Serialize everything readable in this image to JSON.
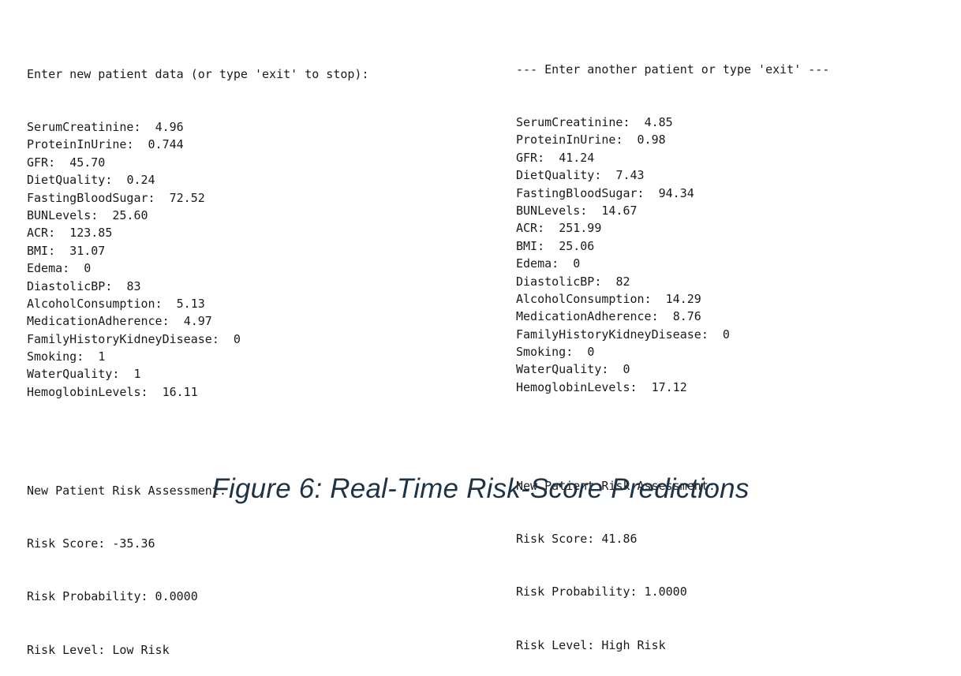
{
  "left": {
    "header": "Enter new patient data (or type 'exit' to stop):",
    "fields": [
      {
        "key": "SerumCreatinine",
        "value": "4.96"
      },
      {
        "key": "ProteinInUrine",
        "value": "0.744"
      },
      {
        "key": "GFR",
        "value": "45.70"
      },
      {
        "key": "DietQuality",
        "value": "0.24"
      },
      {
        "key": "FastingBloodSugar",
        "value": "72.52"
      },
      {
        "key": "BUNLevels",
        "value": "25.60"
      },
      {
        "key": "ACR",
        "value": "123.85"
      },
      {
        "key": "BMI",
        "value": "31.07"
      },
      {
        "key": "Edema",
        "value": "0"
      },
      {
        "key": "DiastolicBP",
        "value": "83"
      },
      {
        "key": "AlcoholConsumption",
        "value": "5.13"
      },
      {
        "key": "MedicationAdherence",
        "value": "4.97"
      },
      {
        "key": "FamilyHistoryKidneyDisease",
        "value": "0"
      },
      {
        "key": "Smoking",
        "value": "1"
      },
      {
        "key": "WaterQuality",
        "value": "1"
      },
      {
        "key": "HemoglobinLevels",
        "value": "16.11"
      }
    ],
    "assessment": {
      "title": "New Patient Risk Assessment:",
      "score": "Risk Score: -35.36",
      "probability": "Risk Probability: 0.0000",
      "level": "Risk Level: Low Risk"
    }
  },
  "right": {
    "header": "--- Enter another patient or type 'exit' ---",
    "fields": [
      {
        "key": "SerumCreatinine",
        "value": "4.85"
      },
      {
        "key": "ProteinInUrine",
        "value": "0.98"
      },
      {
        "key": "GFR",
        "value": "41.24"
      },
      {
        "key": "DietQuality",
        "value": "7.43"
      },
      {
        "key": "FastingBloodSugar",
        "value": "94.34"
      },
      {
        "key": "BUNLevels",
        "value": "14.67"
      },
      {
        "key": "ACR",
        "value": "251.99"
      },
      {
        "key": "BMI",
        "value": "25.06"
      },
      {
        "key": "Edema",
        "value": "0"
      },
      {
        "key": "DiastolicBP",
        "value": "82"
      },
      {
        "key": "AlcoholConsumption",
        "value": "14.29"
      },
      {
        "key": "MedicationAdherence",
        "value": "8.76"
      },
      {
        "key": "FamilyHistoryKidneyDisease",
        "value": "0"
      },
      {
        "key": "Smoking",
        "value": "0"
      },
      {
        "key": "WaterQuality",
        "value": "0"
      },
      {
        "key": "HemoglobinLevels",
        "value": "17.12"
      }
    ],
    "assessment": {
      "title": "New Patient Risk Assessment:",
      "score": "Risk Score: 41.86",
      "probability": "Risk Probability: 1.0000",
      "level": "Risk Level: High Risk"
    }
  },
  "caption": "Figure 6: Real-Time Risk-Score Predictions"
}
